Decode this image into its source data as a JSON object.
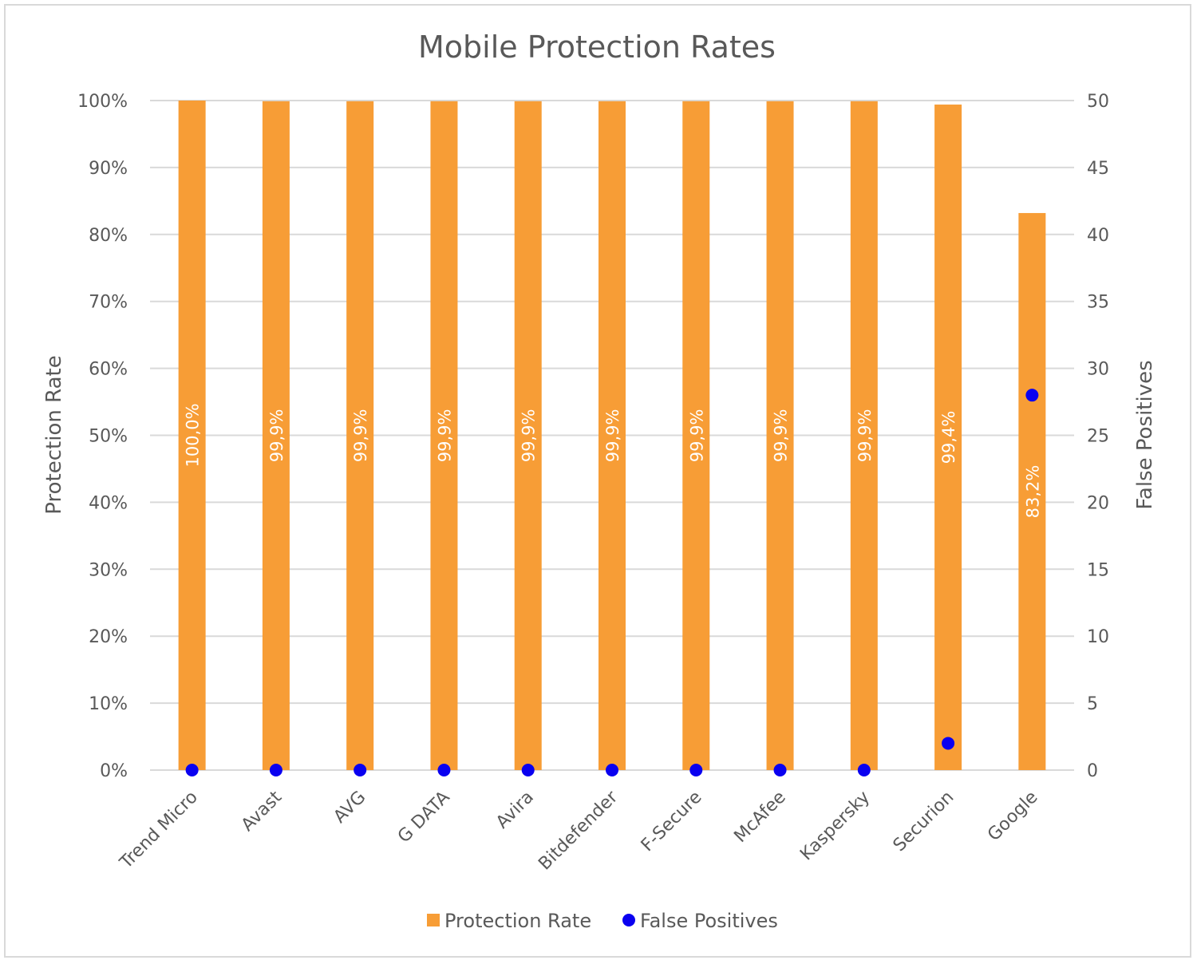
{
  "chart_data": {
    "type": "bar",
    "title": "Mobile Protection Rates",
    "categories": [
      "Trend Micro",
      "Avast",
      "AVG",
      "G DATA",
      "Avira",
      "Bitdefender",
      "F-Secure",
      "McAfee",
      "Kaspersky",
      "Securion",
      "Google"
    ],
    "series": [
      {
        "name": "Protection Rate",
        "type": "bar",
        "axis": "left",
        "color": "#f79d36",
        "values": [
          100.0,
          99.9,
          99.9,
          99.9,
          99.9,
          99.9,
          99.9,
          99.9,
          99.9,
          99.4,
          83.2
        ],
        "labels": [
          "100,0%",
          "99,9%",
          "99,9%",
          "99,9%",
          "99,9%",
          "99,9%",
          "99,9%",
          "99,9%",
          "99,9%",
          "99,4%",
          "83,2%"
        ]
      },
      {
        "name": "False Positives",
        "type": "scatter",
        "axis": "right",
        "color": "#0a00f0",
        "values": [
          0,
          0,
          0,
          0,
          0,
          0,
          0,
          0,
          0,
          2,
          28
        ]
      }
    ],
    "ylabel": "Protection Rate",
    "ylabel_right": "False Positives",
    "ylim": [
      0,
      100
    ],
    "ylim_right": [
      0,
      50
    ],
    "yticks": [
      "0%",
      "10%",
      "20%",
      "30%",
      "40%",
      "50%",
      "60%",
      "70%",
      "80%",
      "90%",
      "100%"
    ],
    "yticks_right": [
      "0",
      "5",
      "10",
      "15",
      "20",
      "25",
      "30",
      "35",
      "40",
      "45",
      "50"
    ],
    "grid": true,
    "legend_position": "bottom"
  }
}
